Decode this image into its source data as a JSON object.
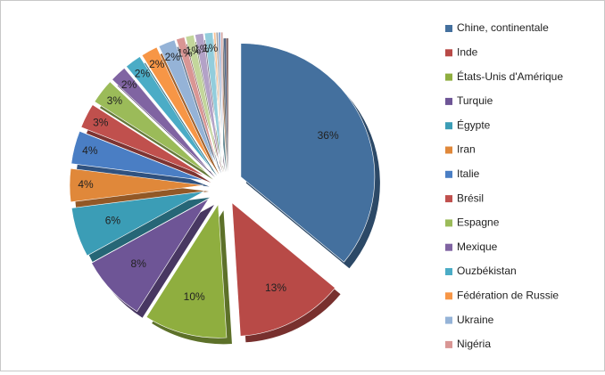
{
  "chart_data": {
    "type": "pie",
    "categories": [
      "Chine, continentale",
      "Inde",
      "États-Unis d'Amérique",
      "Turquie",
      "Égypte",
      "Iran",
      "Italie",
      "Brésil",
      "Espagne",
      "Mexique",
      "Ouzbékistan",
      "Fédération de Russie",
      "Ukraine",
      "Nigéria",
      null,
      null,
      null,
      null,
      null,
      null,
      null
    ],
    "values": [
      36,
      13,
      10,
      8,
      6,
      4,
      4,
      3,
      3,
      2,
      2,
      2,
      2,
      1,
      1,
      1,
      1,
      0.25,
      0.25,
      0.25,
      0.25
    ],
    "value_labels": [
      "36%",
      "13%",
      "10%",
      "8%",
      "6%",
      "4%",
      "4%",
      "3%",
      "3%",
      "2%",
      "2%",
      "2%",
      "2%",
      "1%",
      "1%",
      "1%",
      "1%",
      null,
      null,
      null,
      null
    ],
    "colors": [
      "#44709e",
      "#b84a47",
      "#8fae3f",
      "#6e5596",
      "#3b9db6",
      "#e0883a",
      "#4a7ec4",
      "#c0504d",
      "#9bbb59",
      "#8064a2",
      "#4bacc6",
      "#f79646",
      "#95b3d7",
      "#d99694",
      "#c3d69b",
      "#b3a2c7",
      "#92cddc",
      "#fac090",
      "#a5a5a5",
      "#7f9fcf",
      "#d0a3a1"
    ]
  }
}
